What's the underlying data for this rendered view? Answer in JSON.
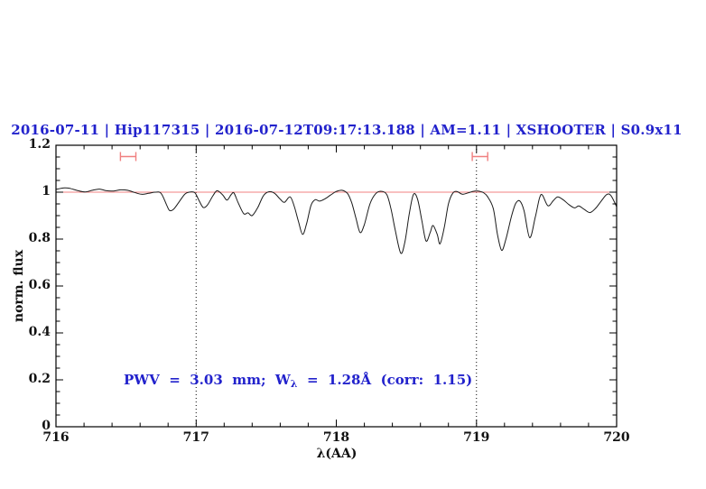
{
  "colors": {
    "accent_blue": "#2222cc",
    "continuum_red": "#f08080",
    "spectrum_line": "#1a1a1a",
    "axis": "#000000",
    "background": "#ffffff"
  },
  "chart_data": {
    "type": "line",
    "title": "2016-07-11 | Hip117315 | 2016-07-12T09:17:13.188 | AM=1.11 | XSHOOTER | S0.9x11",
    "xlabel": "λ(AA)",
    "ylabel": "norm. flux",
    "xlim": [
      716,
      720
    ],
    "ylim": [
      0,
      1.2
    ],
    "x_major_ticks": [
      716,
      717,
      718,
      719,
      720
    ],
    "x_tick_labels": [
      "716",
      "717",
      "718",
      "719",
      "720"
    ],
    "x_minor_step": 0.2,
    "y_major_ticks": [
      0,
      0.2,
      0.4,
      0.6,
      0.8,
      1,
      1.2
    ],
    "y_tick_labels": [
      "0",
      "0.2",
      "0.4",
      "0.6",
      "0.8",
      "1",
      "1.2"
    ],
    "y_minor_step": 0.05,
    "grid": false,
    "legend": "none",
    "dotted_vlines_x": [
      717,
      719
    ],
    "continuum_level": 1.0,
    "telluric_band_markers": [
      {
        "x1": 716.46,
        "x2": 716.57,
        "y": 1.152
      },
      {
        "x1": 718.97,
        "x2": 719.08,
        "y": 1.152
      }
    ],
    "annotation": {
      "pre": "PWV  =  3.03  mm;  W",
      "sub": "λ",
      "post": "  =  1.28Å  (corr:  1.15)"
    },
    "series": [
      {
        "name": "normalized telluric spectrum",
        "x": [
          716.0,
          716.06,
          716.1,
          716.16,
          716.21,
          716.26,
          716.31,
          716.36,
          716.41,
          716.46,
          716.51,
          716.56,
          716.61,
          716.66,
          716.71,
          716.75,
          716.79,
          716.81,
          716.84,
          716.88,
          716.92,
          716.95,
          716.99,
          717.02,
          717.05,
          717.08,
          717.12,
          717.15,
          717.19,
          717.22,
          717.25,
          717.27,
          717.3,
          717.34,
          717.37,
          717.4,
          717.44,
          717.48,
          717.52,
          717.56,
          717.6,
          717.63,
          717.67,
          717.7,
          717.73,
          717.76,
          717.79,
          717.82,
          717.85,
          717.88,
          717.92,
          717.96,
          718.0,
          718.04,
          718.08,
          718.11,
          718.14,
          718.17,
          718.2,
          718.24,
          718.28,
          718.32,
          718.36,
          718.39,
          718.42,
          718.46,
          718.49,
          718.52,
          718.55,
          718.58,
          718.61,
          718.64,
          718.67,
          718.69,
          718.72,
          718.74,
          718.77,
          718.8,
          718.83,
          718.86,
          718.9,
          718.94,
          718.98,
          719.01,
          719.05,
          719.08,
          719.12,
          719.15,
          719.18,
          719.21,
          719.25,
          719.28,
          719.31,
          719.34,
          719.38,
          719.42,
          719.45,
          719.47,
          719.51,
          719.55,
          719.58,
          719.62,
          719.66,
          719.7,
          719.73,
          719.77,
          719.81,
          719.85,
          719.89,
          719.93,
          719.96,
          720.0
        ],
        "y": [
          1.012,
          1.018,
          1.016,
          1.006,
          1.001,
          1.008,
          1.013,
          1.006,
          1.005,
          1.01,
          1.008,
          0.999,
          0.991,
          0.995,
          1.0,
          0.995,
          0.945,
          0.922,
          0.928,
          0.96,
          0.992,
          1.0,
          0.998,
          0.965,
          0.935,
          0.945,
          0.985,
          1.006,
          0.988,
          0.966,
          0.99,
          0.996,
          0.955,
          0.908,
          0.912,
          0.9,
          0.935,
          0.985,
          1.002,
          0.995,
          0.97,
          0.957,
          0.98,
          0.94,
          0.875,
          0.82,
          0.87,
          0.945,
          0.968,
          0.962,
          0.972,
          0.988,
          1.003,
          1.008,
          0.995,
          0.955,
          0.89,
          0.828,
          0.862,
          0.95,
          0.993,
          1.004,
          0.99,
          0.93,
          0.84,
          0.74,
          0.79,
          0.905,
          0.99,
          0.97,
          0.88,
          0.792,
          0.828,
          0.858,
          0.82,
          0.78,
          0.848,
          0.95,
          0.995,
          1.003,
          0.991,
          0.997,
          1.004,
          1.005,
          0.998,
          0.98,
          0.93,
          0.82,
          0.752,
          0.8,
          0.898,
          0.952,
          0.962,
          0.92,
          0.806,
          0.895,
          0.975,
          0.988,
          0.942,
          0.965,
          0.98,
          0.967,
          0.947,
          0.933,
          0.941,
          0.926,
          0.913,
          0.931,
          0.962,
          0.99,
          0.985,
          0.938
        ]
      },
      {
        "name": "continuum reference line",
        "type": "hline",
        "y_value": 1.0
      }
    ]
  }
}
